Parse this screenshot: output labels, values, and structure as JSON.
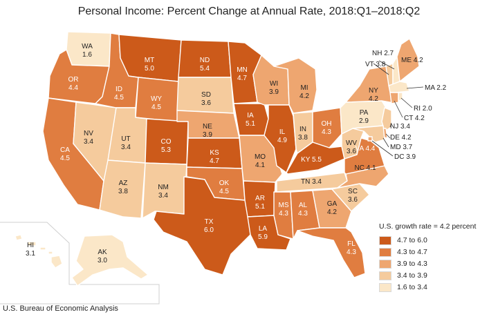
{
  "title": "Personal Income: Percent Change at Annual Rate, 2018:Q1–2018:Q2",
  "source": "U.S. Bureau of Economic Analysis",
  "legend": {
    "title": "U.S. growth rate = 4.2 percent",
    "bins": [
      {
        "label": "4.7 to 6.0",
        "color": "#cc5a1a"
      },
      {
        "label": "4.3 to 4.7",
        "color": "#e07d40"
      },
      {
        "label": "3.9 to 4.3",
        "color": "#eea670"
      },
      {
        "label": "3.4 to 3.9",
        "color": "#f5cb9d"
      },
      {
        "label": "1.6 to 3.4",
        "color": "#fbe7c8"
      }
    ]
  },
  "states": {
    "WA": "1.6",
    "OR": "4.4",
    "CA": "4.5",
    "NV": "3.4",
    "ID": "4.5",
    "MT": "5.0",
    "WY": "4.5",
    "UT": "3.4",
    "AZ": "3.8",
    "CO": "5.3",
    "NM": "3.4",
    "ND": "5.4",
    "SD": "3.6",
    "NE": "3.9",
    "KS": "4.7",
    "OK": "4.5",
    "TX": "6.0",
    "MN": "4.7",
    "IA": "5.1",
    "MO": "4.1",
    "AR": "5.1",
    "LA": "5.9",
    "WI": "3.9",
    "IL": "4.9",
    "MI": "4.2",
    "IN": "3.8",
    "OH": "4.3",
    "KY": "5.5",
    "TN": "3.4",
    "MS": "4.3",
    "AL": "4.3",
    "GA": "4.2",
    "FL": "4.3",
    "SC": "3.6",
    "NC": "4.1",
    "VA": "4.4",
    "WV": "3.6",
    "PA": "2.9",
    "NY": "4.2",
    "ME": "4.2",
    "NH": "2.7",
    "VT": "3.8",
    "MA": "2.2",
    "RI": "2.0",
    "CT": "4.2",
    "NJ": "3.4",
    "DE": "4.2",
    "MD": "3.7",
    "DC": "3.9",
    "AK": "3.0",
    "HI": "3.1"
  }
}
